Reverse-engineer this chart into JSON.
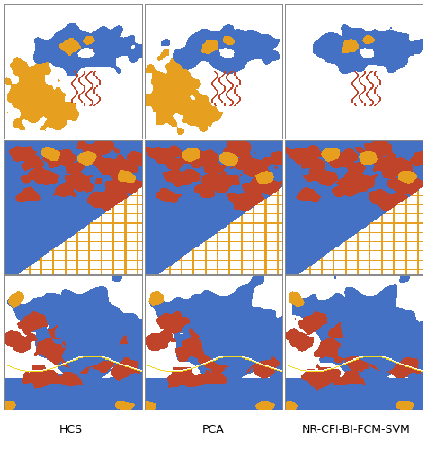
{
  "col_labels": [
    "HCS",
    "PCA",
    "NR-CFI-BI-FCM-SVM"
  ],
  "col_label_fontsize": 9,
  "fig_width": 4.75,
  "fig_height": 5.0,
  "dpi": 100,
  "background_color": "#ffffff",
  "border_color": "#888888",
  "blue": [
    0.267,
    0.447,
    0.769
  ],
  "orange": [
    0.906,
    0.627,
    0.125
  ],
  "red": [
    0.753,
    0.267,
    0.165
  ],
  "white": [
    1.0,
    1.0,
    1.0
  ],
  "yellow": [
    0.95,
    0.85,
    0.1
  ]
}
